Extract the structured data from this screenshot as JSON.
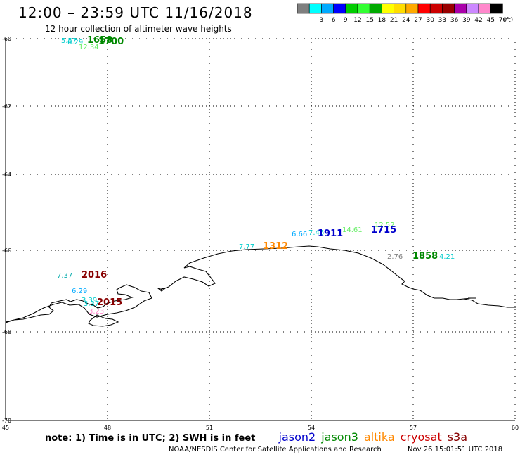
{
  "header": {
    "title": "12:00 – 23:59 UTC 11/16/2018",
    "subtitle": "12 hour collection of altimeter wave heights"
  },
  "colorbar": {
    "unit": "(ft)",
    "items": [
      {
        "label": "",
        "color": "#7f7f7f"
      },
      {
        "label": "3",
        "color": "#00ffff"
      },
      {
        "label": "6",
        "color": "#00aaff"
      },
      {
        "label": "9",
        "color": "#0000ff"
      },
      {
        "label": "12",
        "color": "#00cc00"
      },
      {
        "label": "15",
        "color": "#33ff33"
      },
      {
        "label": "18",
        "color": "#00aa00"
      },
      {
        "label": "21",
        "color": "#ffff00"
      },
      {
        "label": "24",
        "color": "#ffdd00"
      },
      {
        "label": "27",
        "color": "#ffaa00"
      },
      {
        "label": "30",
        "color": "#ff0000"
      },
      {
        "label": "33",
        "color": "#cc0000"
      },
      {
        "label": "36",
        "color": "#990000"
      },
      {
        "label": "39",
        "color": "#aa00aa"
      },
      {
        "label": "42",
        "color": "#cc88ff"
      },
      {
        "label": "45",
        "color": "#ff88cc"
      },
      {
        "label": "70",
        "color": "#000000"
      }
    ]
  },
  "axes": {
    "lon_ticks": [
      "45",
      "48",
      "51",
      "54",
      "57",
      "60"
    ],
    "lat_ticks": [
      "-60",
      "-62",
      "-64",
      "-66",
      "-68",
      "-70"
    ]
  },
  "observations": [
    {
      "text": "5.57",
      "color": "#00cccc"
    },
    {
      "text": "6.29",
      "color": "#00cccc"
    },
    {
      "text": "12.34",
      "color": "#66ee66"
    },
    {
      "text": "1658",
      "color": "#008800"
    },
    {
      "text": "1700",
      "color": "#008800"
    },
    {
      "text": "7.77",
      "color": "#00cccc"
    },
    {
      "text": "1312",
      "color": "#ff8800"
    },
    {
      "text": "6.66",
      "color": "#00aaff"
    },
    {
      "text": "7.46",
      "color": "#00cccc"
    },
    {
      "text": "1911",
      "color": "#0000cc"
    },
    {
      "text": "14.61",
      "color": "#66ee66"
    },
    {
      "text": "12.52",
      "color": "#66ee66"
    },
    {
      "text": "1715",
      "color": "#0000cc"
    },
    {
      "text": "2.76",
      "color": "#808080"
    },
    {
      "text": "1858",
      "color": "#008800"
    },
    {
      "text": "4.21",
      "color": "#00cccc"
    },
    {
      "text": "7.37",
      "color": "#00aaaa"
    },
    {
      "text": "2016",
      "color": "#880000"
    },
    {
      "text": "6.29",
      "color": "#00aaff"
    },
    {
      "text": "3.39",
      "color": "#00cccc"
    },
    {
      "text": "3.37",
      "color": "#00cccc"
    },
    {
      "text": "2015",
      "color": "#880000"
    },
    {
      "text": "3.23",
      "color": "#ff88cc"
    }
  ],
  "footer": {
    "note": "note: 1) Time is in UTC; 2) SWH is in feet",
    "satellites": [
      {
        "name": "jason2",
        "color": "#0000cc"
      },
      {
        "name": "jason3",
        "color": "#008800"
      },
      {
        "name": "altika",
        "color": "#ff8800"
      },
      {
        "name": "cryosat",
        "color": "#cc0000"
      },
      {
        "name": "s3a",
        "color": "#880000"
      }
    ],
    "credit": "NOAA/NESDIS Center for Satellite Applications and Research",
    "timestamp": "Nov 26 15:01:51 UTC 2018"
  }
}
